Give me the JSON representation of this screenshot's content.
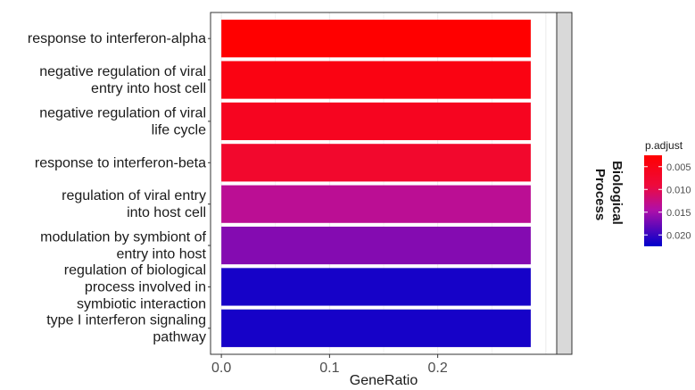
{
  "chart_data": {
    "type": "bar",
    "orientation": "horizontal",
    "categories": [
      [
        "response to interferon-alpha"
      ],
      [
        "negative regulation of viral",
        "entry into host cell"
      ],
      [
        "negative regulation of viral",
        "life cycle"
      ],
      [
        "response to interferon-beta"
      ],
      [
        "regulation of viral entry",
        "into host cell"
      ],
      [
        "modulation by symbiont of",
        "entry into host"
      ],
      [
        "regulation of biological",
        "process involved in",
        "symbiotic interaction"
      ],
      [
        "type I interferon signaling",
        "pathway"
      ]
    ],
    "values": [
      0.286,
      0.286,
      0.286,
      0.286,
      0.286,
      0.286,
      0.286,
      0.286
    ],
    "p_adjust": [
      0.0025,
      0.0045,
      0.006,
      0.0075,
      0.0135,
      0.0165,
      0.0215,
      0.0215
    ],
    "xlabel": "GeneRatio",
    "xlim": [
      -0.01,
      0.31
    ],
    "xticks": [
      0.0,
      0.1,
      0.2
    ],
    "xtick_labels": [
      "0.0",
      "0.1",
      "0.2"
    ],
    "facet_label": [
      "Biological",
      "Process"
    ],
    "grid": true,
    "colors": {
      "low": "#ff0000",
      "high": "#0000cc",
      "panel_border": "#333333",
      "strip_bg": "#d9d9d9",
      "grid": "#ebebeb"
    },
    "legend": {
      "title": "p.adjust",
      "placement": "right",
      "range": [
        0.0025,
        0.0225
      ],
      "ticks": [
        0.005,
        0.01,
        0.015,
        0.02
      ],
      "tick_labels": [
        "0.005",
        "0.010",
        "0.015",
        "0.020"
      ]
    }
  }
}
